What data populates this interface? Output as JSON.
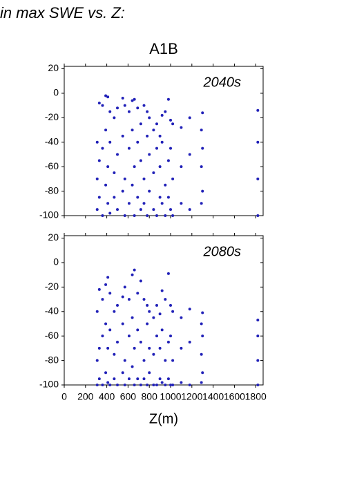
{
  "header": {
    "title": "in max SWE vs. Z:"
  },
  "chart_data": [
    {
      "type": "scatter",
      "title": "A1B",
      "annotation": "2040s",
      "color": "#2121b8",
      "xlim": [
        0,
        1870
      ],
      "xticks": [
        0,
        200,
        400,
        600,
        800,
        1000,
        1200,
        1400,
        1600,
        1800
      ],
      "xtick_labels": false,
      "ylim": [
        -100,
        22
      ],
      "yticks": [
        -100,
        -80,
        -60,
        -40,
        -20,
        0,
        20
      ],
      "x": [
        310,
        310,
        310,
        330,
        330,
        330,
        360,
        360,
        360,
        390,
        390,
        390,
        410,
        410,
        410,
        430,
        430,
        430,
        470,
        470,
        470,
        500,
        500,
        500,
        550,
        550,
        550,
        570,
        570,
        570,
        610,
        610,
        610,
        640,
        640,
        640,
        660,
        660,
        660,
        690,
        690,
        690,
        720,
        720,
        720,
        750,
        750,
        750,
        780,
        780,
        780,
        800,
        800,
        800,
        840,
        840,
        840,
        870,
        870,
        870,
        900,
        900,
        900,
        920,
        920,
        920,
        950,
        950,
        950,
        980,
        980,
        980,
        1000,
        1000,
        1000,
        1020,
        1020,
        1020,
        1100,
        1100,
        1100,
        1180,
        1180,
        1180,
        1290,
        1290,
        1290,
        1300,
        1300,
        1300,
        1820,
        1820,
        1820,
        1820
      ],
      "values": [
        -40,
        -70,
        -95,
        -8,
        -55,
        -85,
        -10,
        -45,
        -100,
        -2,
        -30,
        -75,
        -3,
        -60,
        -90,
        -15,
        -40,
        -98,
        -20,
        -65,
        -85,
        -12,
        -50,
        -95,
        -4,
        -35,
        -80,
        -10,
        -70,
        -100,
        -15,
        -45,
        -90,
        -6,
        -30,
        -75,
        -5,
        -60,
        -100,
        -12,
        -40,
        -85,
        -25,
        -55,
        -95,
        -10,
        -70,
        -90,
        -15,
        -35,
        -100,
        -20,
        -50,
        -80,
        -30,
        -65,
        -95,
        -25,
        -45,
        -100,
        -35,
        -60,
        -85,
        -18,
        -40,
        -90,
        -15,
        -75,
        -100,
        -5,
        -55,
        -85,
        -22,
        -45,
        -95,
        -25,
        -70,
        -100,
        -28,
        -60,
        -90,
        -20,
        -50,
        -95,
        -30,
        -60,
        -90,
        -16,
        -45,
        -80,
        -14,
        -40,
        -70,
        -100
      ]
    },
    {
      "type": "scatter",
      "annotation": "2080s",
      "xlabel": "Z(m)",
      "color": "#2121b8",
      "xlim": [
        0,
        1870
      ],
      "xticks": [
        0,
        200,
        400,
        600,
        800,
        1000,
        1200,
        1400,
        1600,
        1800
      ],
      "xtick_labels": true,
      "ylim": [
        -100,
        22
      ],
      "yticks": [
        -100,
        -80,
        -60,
        -40,
        -20,
        0,
        20
      ],
      "x": [
        310,
        310,
        310,
        330,
        330,
        330,
        360,
        360,
        360,
        390,
        390,
        390,
        410,
        410,
        410,
        430,
        430,
        430,
        470,
        470,
        470,
        500,
        500,
        500,
        550,
        550,
        550,
        570,
        570,
        570,
        610,
        610,
        610,
        640,
        640,
        640,
        660,
        660,
        660,
        690,
        690,
        690,
        720,
        720,
        720,
        750,
        750,
        750,
        780,
        780,
        780,
        800,
        800,
        800,
        840,
        840,
        840,
        870,
        870,
        870,
        900,
        900,
        900,
        920,
        920,
        920,
        950,
        950,
        950,
        980,
        980,
        980,
        1000,
        1000,
        1000,
        1020,
        1020,
        1020,
        1100,
        1100,
        1100,
        1180,
        1180,
        1180,
        1290,
        1290,
        1290,
        1300,
        1300,
        1300,
        1820,
        1820,
        1820,
        1820
      ],
      "values": [
        -40,
        -80,
        -100,
        -22,
        -70,
        -95,
        -30,
        -60,
        -100,
        -18,
        -50,
        -90,
        -12,
        -70,
        -98,
        -25,
        -55,
        -100,
        -40,
        -75,
        -95,
        -35,
        -65,
        -100,
        -28,
        -50,
        -90,
        -20,
        -80,
        -100,
        -30,
        -60,
        -95,
        -10,
        -45,
        -85,
        -6,
        -70,
        -100,
        -25,
        -55,
        -95,
        -15,
        -65,
        -100,
        -30,
        -80,
        -95,
        -35,
        -50,
        -100,
        -40,
        -70,
        -90,
        -45,
        -75,
        -100,
        -35,
        -60,
        -100,
        -42,
        -70,
        -95,
        -23,
        -55,
        -98,
        -30,
        -80,
        -100,
        -9,
        -65,
        -95,
        -35,
        -60,
        -100,
        -40,
        -80,
        -100,
        -45,
        -70,
        -98,
        -38,
        -65,
        -100,
        -50,
        -75,
        -98,
        -41,
        -60,
        -90,
        -47,
        -60,
        -80,
        -100
      ]
    }
  ]
}
